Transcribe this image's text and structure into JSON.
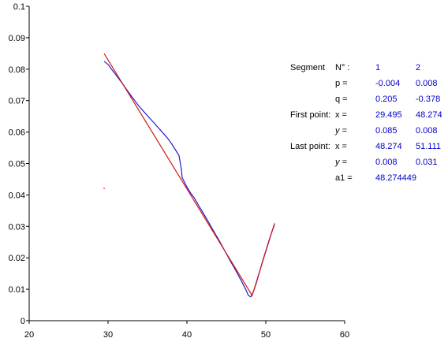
{
  "chart_data": {
    "type": "line",
    "xlim": [
      20,
      60
    ],
    "ylim": [
      0,
      0.1
    ],
    "x_ticks": [
      "20",
      "30",
      "40",
      "50",
      "60"
    ],
    "y_ticks": [
      "0",
      "0.01",
      "0.02",
      "0.03",
      "0.04",
      "0.05",
      "0.06",
      "0.07",
      "0.08",
      "0.09",
      "0.1"
    ],
    "grid": false,
    "series": [
      {
        "color": "#1f1fcc",
        "points": [
          [
            29.5,
            0.0825
          ],
          [
            30.0,
            0.0815
          ],
          [
            30.5,
            0.0798
          ],
          [
            31.0,
            0.0782
          ],
          [
            31.5,
            0.0765
          ],
          [
            32.0,
            0.0748
          ],
          [
            32.5,
            0.073
          ],
          [
            33.0,
            0.0713
          ],
          [
            33.5,
            0.0696
          ],
          [
            34.0,
            0.068
          ],
          [
            34.5,
            0.0666
          ],
          [
            35.0,
            0.0652
          ],
          [
            35.5,
            0.0638
          ],
          [
            36.0,
            0.0624
          ],
          [
            36.5,
            0.061
          ],
          [
            37.0,
            0.0596
          ],
          [
            37.5,
            0.0582
          ],
          [
            38.0,
            0.0565
          ],
          [
            38.5,
            0.0545
          ],
          [
            39.0,
            0.0525
          ],
          [
            39.3,
            0.048
          ],
          [
            39.4,
            0.0455
          ],
          [
            40.0,
            0.0425
          ],
          [
            40.5,
            0.0405
          ],
          [
            41.0,
            0.0388
          ],
          [
            41.5,
            0.0366
          ],
          [
            42.0,
            0.0345
          ],
          [
            42.5,
            0.0324
          ],
          [
            43.0,
            0.0302
          ],
          [
            43.5,
            0.028
          ],
          [
            44.0,
            0.0259
          ],
          [
            44.5,
            0.0236
          ],
          [
            45.0,
            0.0213
          ],
          [
            45.5,
            0.019
          ],
          [
            46.0,
            0.0168
          ],
          [
            46.5,
            0.0145
          ],
          [
            47.0,
            0.0122
          ],
          [
            47.5,
            0.0097
          ],
          [
            47.8,
            0.008
          ],
          [
            48.1,
            0.0076
          ],
          [
            48.4,
            0.009
          ],
          [
            48.8,
            0.012
          ],
          [
            49.2,
            0.0155
          ],
          [
            49.6,
            0.019
          ],
          [
            50.0,
            0.0222
          ],
          [
            50.4,
            0.0255
          ],
          [
            50.8,
            0.0285
          ],
          [
            51.1,
            0.0305
          ]
        ]
      },
      {
        "color": "#d01818",
        "points": [
          [
            29.495,
            0.085
          ],
          [
            48.274,
            0.008
          ],
          [
            51.111,
            0.031
          ]
        ]
      }
    ],
    "stray_marks": [
      {
        "x": 29.4,
        "y": 0.0422,
        "color": "#d01818"
      }
    ]
  },
  "table": {
    "segment_label": "Segment",
    "n_label": "N° :",
    "rows": [
      {
        "label": "",
        "sym": "p =",
        "v1": "-0.004",
        "v2": "0.008"
      },
      {
        "label": "",
        "sym": "q =",
        "v1": "0.205",
        "v2": "-0.378"
      },
      {
        "label": "First point:",
        "sym": "x =",
        "v1": "29.495",
        "v2": "48.274"
      },
      {
        "label": "",
        "sym": "y =",
        "v1": "0.085",
        "v2": "0.008"
      },
      {
        "label": "Last point:",
        "sym": "x =",
        "v1": "48.274",
        "v2": "51.111"
      },
      {
        "label": "",
        "sym": "y =",
        "v1": "0.008",
        "v2": "0.031"
      },
      {
        "label": "",
        "sym": "a1 =",
        "v1": "48.274449",
        "v2": ""
      }
    ],
    "n_values": [
      "1",
      "2"
    ]
  }
}
